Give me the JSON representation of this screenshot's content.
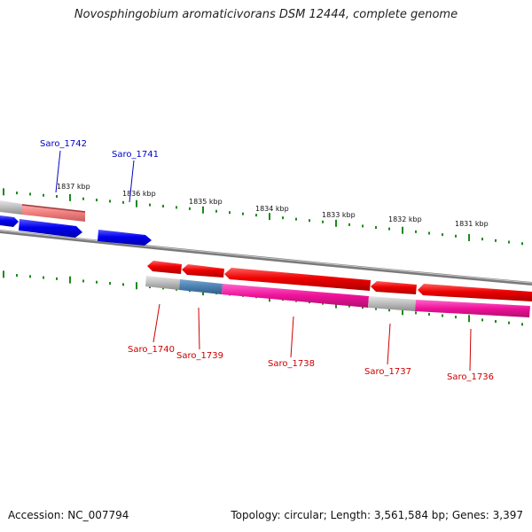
{
  "title": "Novosphingobium aromaticivorans DSM 12444, complete genome",
  "footer": {
    "accession": "Accession: NC_007794",
    "topology": "Topology: circular; Length: 3,561,584 bp; Genes: 3,397"
  },
  "colors": {
    "forward_gene": "#0000ee",
    "reverse_gene": "#ee0000",
    "backbone": "#888888",
    "tick": "#1a8a1a",
    "cog_pink": "#ee1199",
    "cog_blue": "#4a7fb0",
    "cog_gray": "#bbbbbb",
    "cog_salmon": "#f08080",
    "forward_label": "#0000cc",
    "reverse_label": "#cc0000"
  },
  "kbp_labels": [
    "1837 kbp",
    "1836 kbp",
    "1835 kbp",
    "1834 kbp",
    "1833 kbp",
    "1832 kbp",
    "1831 kbp"
  ],
  "forward_genes": [
    "Saro_1742",
    "Saro_1741"
  ],
  "reverse_genes": [
    "Saro_1740",
    "Saro_1739",
    "Saro_1738",
    "Saro_1737",
    "Saro_1736"
  ]
}
